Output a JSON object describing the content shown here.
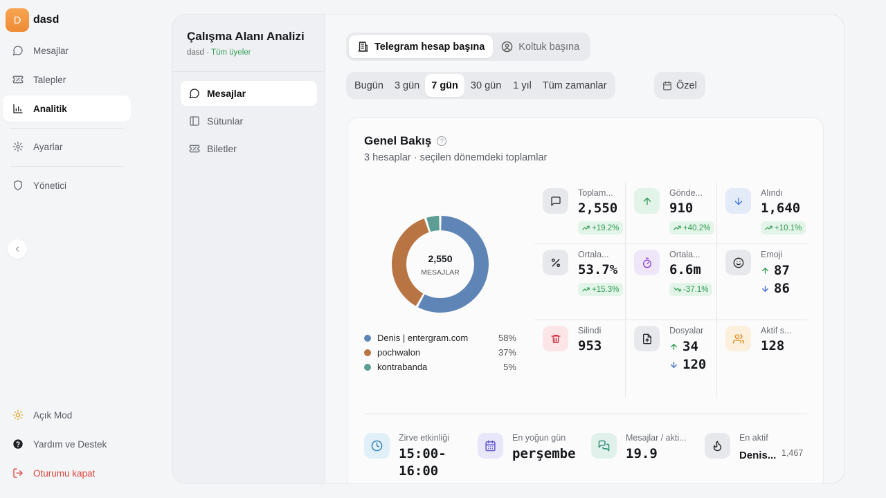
{
  "brand": {
    "initial": "D",
    "name": "dasd"
  },
  "sidebar": {
    "items": [
      {
        "label": "Mesajlar",
        "icon": "message-icon"
      },
      {
        "label": "Talepler",
        "icon": "ticket-icon"
      },
      {
        "label": "Analitik",
        "icon": "chart-icon",
        "active": true
      },
      {
        "label": "Ayarlar",
        "icon": "gear-icon"
      },
      {
        "label": "Yönetici",
        "icon": "shield-icon"
      }
    ],
    "bottom": [
      {
        "label": "Açık Mod",
        "icon": "sun-icon"
      },
      {
        "label": "Yardım ve Destek",
        "icon": "help-icon"
      },
      {
        "label": "Oturumu kapat",
        "icon": "logout-icon"
      }
    ]
  },
  "subnav": {
    "title": "Çalışma Alanı Analizi",
    "workspace": "dasd",
    "separator": " · ",
    "scope": "Tüm üyeler",
    "items": [
      {
        "label": "Mesajlar",
        "active": true
      },
      {
        "label": "Sütunlar"
      },
      {
        "label": "Biletler"
      }
    ]
  },
  "mode_tabs": [
    {
      "label": "Telegram hesap başına",
      "active": true
    },
    {
      "label": "Koltuk başına"
    }
  ],
  "range_tabs": [
    "Bugün",
    "3 gün",
    "7 gün",
    "30 gün",
    "1 yıl",
    "Tüm zamanlar"
  ],
  "range_active": "7 gün",
  "custom_range": "Özel",
  "overview": {
    "title": "Genel Bakış",
    "subtitle": "3 hesaplar · seçilen dönemdeki toplamlar",
    "donut_total": "2,550",
    "donut_label": "MESAJLAR"
  },
  "chart_data": {
    "type": "pie",
    "variant": "donut",
    "center_value": "2,550",
    "center_label": "MESAJLAR",
    "series": [
      {
        "name": "Denis | entergram.com",
        "value": 58,
        "label": "58%",
        "color": "#5f85b6"
      },
      {
        "name": "pochwalon",
        "value": 37,
        "label": "37%",
        "color": "#b87443"
      },
      {
        "name": "kontrabanda",
        "value": 5,
        "label": "5%",
        "color": "#5c9e93"
      }
    ]
  },
  "stats": {
    "total": {
      "label": "Toplam...",
      "value": "2,550",
      "change": "+19.2%"
    },
    "sent": {
      "label": "Gönde...",
      "value": "910",
      "change": "+40.2%"
    },
    "received": {
      "label": "Alındı",
      "value": "1,640",
      "change": "+10.1%"
    },
    "ratio": {
      "label": "Ortala...",
      "value": "53.7%",
      "change": "+15.3%"
    },
    "response": {
      "label": "Ortala...",
      "value": "6.6m",
      "change": "-37.1%"
    },
    "emoji": {
      "label": "Emoji",
      "up": "87",
      "down": "86"
    },
    "deleted": {
      "label": "Silindi",
      "value": "953"
    },
    "files": {
      "label": "Dosyalar",
      "up": "34",
      "down": "120"
    },
    "active": {
      "label": "Aktif s...",
      "value": "128"
    }
  },
  "bottom_stats": {
    "peak": {
      "label": "Zirve etkinliği",
      "value": "15:00-\n16:00"
    },
    "busiest": {
      "label": "En yoğun gün",
      "value": "perşembe"
    },
    "per_active": {
      "label": "Mesajlar / akti...",
      "value": "19.9"
    },
    "most_active": {
      "label": "En aktif",
      "value": "Denis...",
      "count": "1,467"
    }
  },
  "colors": {
    "accent_green": "#2e9a52",
    "logout_red": "#e0453c",
    "brand_orange": "#f29a44"
  }
}
